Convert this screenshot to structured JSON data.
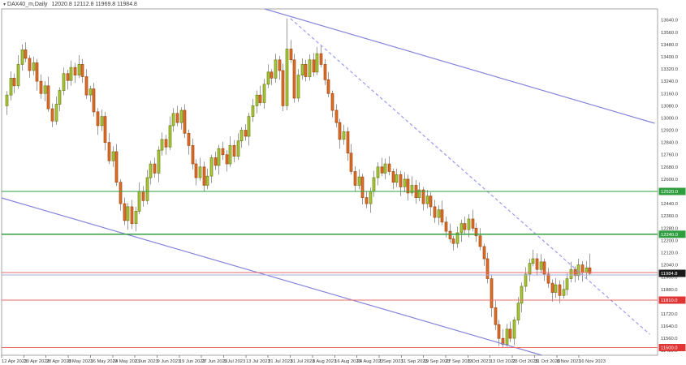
{
  "title": {
    "icon": "▾",
    "symbol_period": "DAX40_m,Daily",
    "quote": "12020.8 12112.8 11969.8 11984.8"
  },
  "colors": {
    "background": "#ffffff",
    "border": "#a6a6a6",
    "axis_text": "#3a3a3a",
    "bull_fill": "#a6c836",
    "bull_stroke": "#6d7f1a",
    "bear_fill": "#df6b28",
    "bear_stroke": "#9e4a12",
    "wick": "#9b9b9b",
    "green_line": "#2f9e3f",
    "red_line": "#ef6a6a",
    "lavender_line": "#a9aede",
    "channel_line": "#8585de",
    "dashed_line": "#9a9af2",
    "green_tag": "#2f9e3f",
    "red_tag": "#e03535",
    "current_tag": "#1a1a1a"
  },
  "chart_data": {
    "type": "candlestick",
    "symbol": "DAX40_m",
    "timeframe": "Daily",
    "last_bar": {
      "open": 12020.8,
      "high": 12112.8,
      "low": 11969.8,
      "close": 11984.8
    },
    "y_axis": {
      "min": 11449.5,
      "max": 13712.6
    },
    "y_ticks": [
      13640,
      13560,
      13480,
      13400,
      13320,
      13240,
      13160,
      13080,
      13000,
      12920,
      12840,
      12760,
      12680,
      12600,
      12520,
      12440,
      12360,
      12280,
      12200,
      12120,
      12040,
      11960,
      11880,
      11800,
      11720,
      11640,
      11560,
      11480
    ],
    "x_ticks": [
      "12 Apr 2023",
      "20 Apr 2023",
      "28 Apr 2023",
      "8 May 2023",
      "16 May 2023",
      "24 May 2023",
      "1 Jun 2023",
      "9 Jun 2023",
      "19 Jun 2023",
      "27 Jun 2023",
      "5 Jul 2023",
      "13 Jul 2023",
      "21 Jul 2023",
      "31 Jul 2023",
      "8 Aug 2023",
      "16 Aug 2023",
      "24 Aug 2023",
      "1 Sep 2023",
      "11 Sep 2023",
      "19 Sep 2023",
      "27 Sep 2023",
      "5 Oct 2023",
      "13 Oct 2023",
      "23 Oct 2023",
      "31 Oct 2023",
      "8 Nov 2023",
      "16 Nov 2023"
    ],
    "horizontal_lines": [
      {
        "price": 12520.0,
        "color": "green",
        "tag": "12520.0"
      },
      {
        "price": 12240.0,
        "color": "green",
        "tag": "12240.0"
      },
      {
        "price": 11990.0,
        "color": "red",
        "tag": null
      },
      {
        "price": 11975.0,
        "color": "lavender",
        "tag": null
      },
      {
        "price": 11810.0,
        "color": "red",
        "tag": "11810.0"
      },
      {
        "price": 11500.0,
        "color": "red",
        "tag": "11500.0"
      }
    ],
    "current_price_tag": {
      "price": 11984.8,
      "label": "11984.8"
    },
    "trend_lines": [
      {
        "name": "channel-upper",
        "bar1": 68.2,
        "price1": 13712.6,
        "bar2": 171.2,
        "price2": 12965.3,
        "style": "solid"
      },
      {
        "name": "channel-lower",
        "bar1": -1.3,
        "price1": 12477.7,
        "bar2": 141.4,
        "price2": 11449.5,
        "style": "solid"
      },
      {
        "name": "resistance-ray",
        "bar1": 75.0,
        "price1": 13650.0,
        "bar2": 169.9,
        "price2": 11587.0,
        "style": "dashed"
      }
    ],
    "candles": [
      [
        13080,
        13175,
        13020,
        13150
      ],
      [
        13150,
        13305,
        13115,
        13260
      ],
      [
        13260,
        13290,
        13160,
        13210
      ],
      [
        13210,
        13410,
        13190,
        13350
      ],
      [
        13350,
        13480,
        13310,
        13445
      ],
      [
        13445,
        13495,
        13365,
        13390
      ],
      [
        13390,
        13410,
        13265,
        13310
      ],
      [
        13310,
        13400,
        13280,
        13360
      ],
      [
        13360,
        13385,
        13180,
        13240
      ],
      [
        13240,
        13285,
        13125,
        13160
      ],
      [
        13160,
        13240,
        13110,
        13210
      ],
      [
        13210,
        13270,
        13040,
        13060
      ],
      [
        13060,
        13095,
        12940,
        12980
      ],
      [
        12980,
        13140,
        12955,
        13090
      ],
      [
        13090,
        13200,
        13045,
        13180
      ],
      [
        13180,
        13330,
        13150,
        13290
      ],
      [
        13290,
        13315,
        13185,
        13245
      ],
      [
        13245,
        13375,
        13210,
        13330
      ],
      [
        13330,
        13360,
        13230,
        13280
      ],
      [
        13280,
        13410,
        13260,
        13350
      ],
      [
        13350,
        13385,
        13230,
        13270
      ],
      [
        13270,
        13320,
        13125,
        13150
      ],
      [
        13150,
        13210,
        13105,
        13190
      ],
      [
        13190,
        13230,
        13010,
        13040
      ],
      [
        13040,
        13065,
        12890,
        12950
      ],
      [
        12950,
        13055,
        12915,
        13010
      ],
      [
        13010,
        13040,
        12790,
        12840
      ],
      [
        12840,
        12900,
        12700,
        12720
      ],
      [
        12720,
        12815,
        12680,
        12780
      ],
      [
        12780,
        12830,
        12555,
        12580
      ],
      [
        12580,
        12600,
        12395,
        12440
      ],
      [
        12440,
        12480,
        12300,
        12330
      ],
      [
        12330,
        12445,
        12270,
        12420
      ],
      [
        12420,
        12465,
        12275,
        12310
      ],
      [
        12310,
        12420,
        12260,
        12390
      ],
      [
        12390,
        12580,
        12370,
        12520
      ],
      [
        12520,
        12555,
        12420,
        12460
      ],
      [
        12460,
        12660,
        12435,
        12610
      ],
      [
        12610,
        12720,
        12565,
        12700
      ],
      [
        12700,
        12740,
        12610,
        12640
      ],
      [
        12640,
        12815,
        12580,
        12790
      ],
      [
        12790,
        12905,
        12755,
        12860
      ],
      [
        12860,
        12890,
        12760,
        12810
      ],
      [
        12810,
        13010,
        12790,
        12950
      ],
      [
        12950,
        13065,
        12910,
        13030
      ],
      [
        13030,
        13080,
        12945,
        12970
      ],
      [
        12970,
        13070,
        12925,
        13050
      ],
      [
        13050,
        13090,
        12870,
        12900
      ],
      [
        12900,
        12925,
        12760,
        12820
      ],
      [
        12820,
        12865,
        12665,
        12700
      ],
      [
        12700,
        12730,
        12560,
        12610
      ],
      [
        12610,
        12740,
        12590,
        12680
      ],
      [
        12680,
        12715,
        12520,
        12560
      ],
      [
        12560,
        12670,
        12535,
        12620
      ],
      [
        12620,
        12760,
        12575,
        12740
      ],
      [
        12740,
        12780,
        12660,
        12690
      ],
      [
        12690,
        12825,
        12630,
        12800
      ],
      [
        12800,
        12845,
        12725,
        12760
      ],
      [
        12760,
        12790,
        12650,
        12700
      ],
      [
        12700,
        12880,
        12680,
        12820
      ],
      [
        12820,
        12855,
        12710,
        12750
      ],
      [
        12750,
        12900,
        12725,
        12850
      ],
      [
        12850,
        12940,
        12805,
        12920
      ],
      [
        12920,
        12960,
        12850,
        12880
      ],
      [
        12880,
        13035,
        12820,
        13010
      ],
      [
        13010,
        13125,
        12975,
        13080
      ],
      [
        13080,
        13180,
        13030,
        13150
      ],
      [
        13150,
        13210,
        13080,
        13100
      ],
      [
        13100,
        13255,
        13060,
        13220
      ],
      [
        13220,
        13350,
        13195,
        13300
      ],
      [
        13300,
        13320,
        13215,
        13260
      ],
      [
        13260,
        13420,
        13230,
        13380
      ],
      [
        13380,
        13405,
        13250,
        13310
      ],
      [
        13310,
        13355,
        13045,
        13080
      ],
      [
        13080,
        13650,
        13050,
        13450
      ],
      [
        13450,
        13510,
        13360,
        13380
      ],
      [
        13380,
        13420,
        13100,
        13130
      ],
      [
        13130,
        13320,
        13105,
        13280
      ],
      [
        13280,
        13390,
        13250,
        13350
      ],
      [
        13350,
        13380,
        13240,
        13270
      ],
      [
        13270,
        13415,
        13245,
        13380
      ],
      [
        13380,
        13425,
        13270,
        13300
      ],
      [
        13300,
        13465,
        13280,
        13420
      ],
      [
        13420,
        13470,
        13330,
        13350
      ],
      [
        13350,
        13385,
        13215,
        13250
      ],
      [
        13250,
        13300,
        13135,
        13160
      ],
      [
        13160,
        13180,
        13005,
        13050
      ],
      [
        13050,
        13090,
        12940,
        12970
      ],
      [
        12970,
        12995,
        12800,
        12860
      ],
      [
        12860,
        12955,
        12825,
        12910
      ],
      [
        12910,
        12940,
        12720,
        12770
      ],
      [
        12770,
        12830,
        12630,
        12650
      ],
      [
        12650,
        12685,
        12520,
        12560
      ],
      [
        12560,
        12665,
        12535,
        12615
      ],
      [
        12615,
        12635,
        12435,
        12480
      ],
      [
        12480,
        12520,
        12410,
        12440
      ],
      [
        12440,
        12545,
        12380,
        12520
      ],
      [
        12520,
        12655,
        12485,
        12610
      ],
      [
        12610,
        12710,
        12560,
        12680
      ],
      [
        12680,
        12740,
        12620,
        12640
      ],
      [
        12640,
        12735,
        12600,
        12700
      ],
      [
        12700,
        12750,
        12625,
        12650
      ],
      [
        12650,
        12670,
        12535,
        12580
      ],
      [
        12580,
        12670,
        12550,
        12630
      ],
      [
        12630,
        12655,
        12490,
        12550
      ],
      [
        12550,
        12645,
        12515,
        12600
      ],
      [
        12600,
        12630,
        12460,
        12510
      ],
      [
        12510,
        12620,
        12490,
        12560
      ],
      [
        12560,
        12595,
        12440,
        12480
      ],
      [
        12480,
        12580,
        12455,
        12530
      ],
      [
        12530,
        12550,
        12395,
        12440
      ],
      [
        12440,
        12530,
        12410,
        12490
      ],
      [
        12490,
        12515,
        12360,
        12420
      ],
      [
        12420,
        12465,
        12315,
        12350
      ],
      [
        12350,
        12430,
        12300,
        12400
      ],
      [
        12400,
        12460,
        12300,
        12320
      ],
      [
        12320,
        12355,
        12220,
        12260
      ],
      [
        12260,
        12310,
        12185,
        12210
      ],
      [
        12210,
        12230,
        12135,
        12180
      ],
      [
        12180,
        12290,
        12150,
        12250
      ],
      [
        12250,
        12335,
        12190,
        12310
      ],
      [
        12310,
        12355,
        12235,
        12270
      ],
      [
        12270,
        12370,
        12220,
        12340
      ],
      [
        12340,
        12400,
        12260,
        12280
      ],
      [
        12280,
        12315,
        12190,
        12230
      ],
      [
        12230,
        12280,
        12135,
        12160
      ],
      [
        12160,
        12180,
        12035,
        12080
      ],
      [
        12080,
        12120,
        11920,
        11950
      ],
      [
        11950,
        11975,
        11700,
        11760
      ],
      [
        11760,
        11805,
        11615,
        11650
      ],
      [
        11650,
        11680,
        11510,
        11560
      ],
      [
        11560,
        11620,
        11500,
        11520
      ],
      [
        11520,
        11655,
        11505,
        11620
      ],
      [
        11620,
        11670,
        11535,
        11560
      ],
      [
        11560,
        11700,
        11515,
        11680
      ],
      [
        11680,
        11830,
        11650,
        11790
      ],
      [
        11790,
        11925,
        11730,
        11900
      ],
      [
        11900,
        12025,
        11865,
        11980
      ],
      [
        11980,
        12080,
        11930,
        12050
      ],
      [
        12050,
        12140,
        12030,
        12080
      ],
      [
        12080,
        12115,
        11970,
        12010
      ],
      [
        12010,
        12110,
        11985,
        12060
      ],
      [
        12060,
        12080,
        11935,
        11980
      ],
      [
        11980,
        12020,
        11890,
        11920
      ],
      [
        11920,
        11945,
        11800,
        11860
      ],
      [
        11860,
        11955,
        11825,
        11910
      ],
      [
        11910,
        11940,
        11790,
        11840
      ],
      [
        11840,
        11940,
        11820,
        11880
      ],
      [
        11880,
        11985,
        11840,
        11950
      ],
      [
        11950,
        12060,
        11925,
        12010
      ],
      [
        12010,
        12030,
        11925,
        11970
      ],
      [
        11970,
        12080,
        11940,
        12040
      ],
      [
        12040,
        12065,
        11930,
        11990
      ],
      [
        11990,
        12065,
        11955,
        12020.8
      ],
      [
        12020.8,
        12112.8,
        11969.8,
        11984.8
      ]
    ]
  }
}
